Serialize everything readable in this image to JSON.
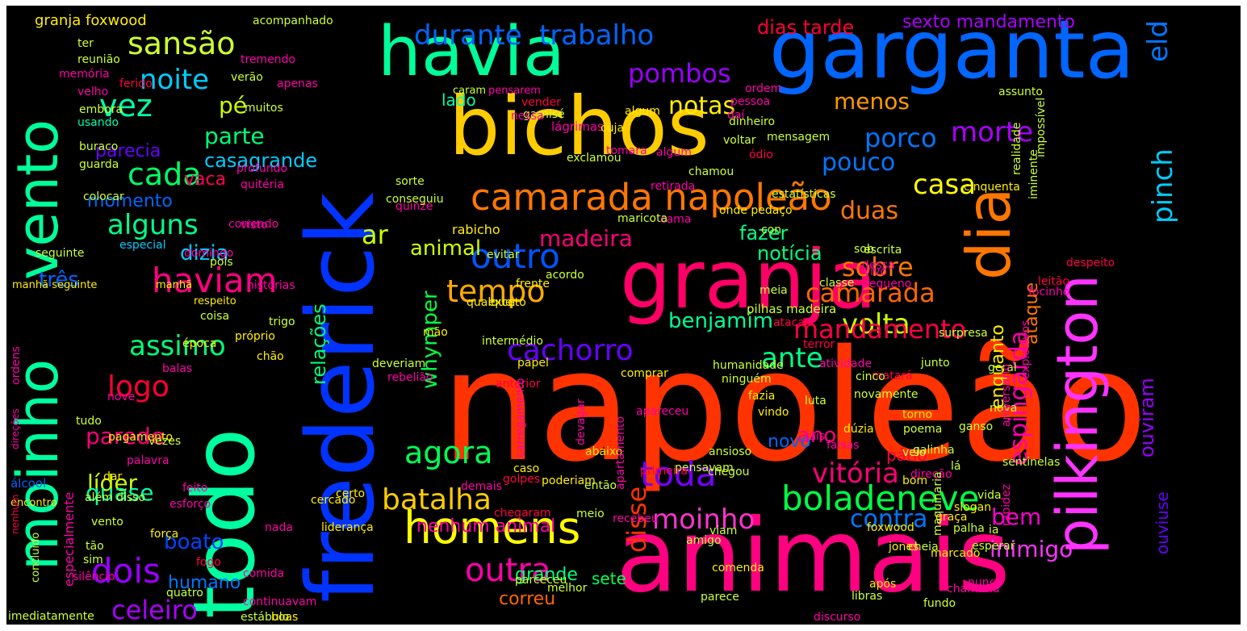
{
  "words": [
    {
      "text": "napoleão",
      "color": "#ff3300"
    },
    {
      "text": "frederick",
      "color": "#0033ff"
    },
    {
      "text": "animais",
      "color": "#ff0080"
    },
    {
      "text": "garganta",
      "color": "#0066ff"
    },
    {
      "text": "bichos",
      "color": "#ffcc00"
    },
    {
      "text": "granja",
      "color": "#ff0066"
    },
    {
      "text": "todo",
      "color": "#00ffa0"
    },
    {
      "text": "moinho",
      "color": "#00ffa0"
    },
    {
      "text": "vento",
      "color": "#00ff99"
    },
    {
      "text": "havia",
      "color": "#00ff99"
    },
    {
      "text": "pilkington",
      "color": "#ff33ff"
    },
    {
      "text": "dia",
      "color": "#ff7700"
    },
    {
      "text": "camarada napoleão",
      "color": "#ff7700"
    },
    {
      "text": "homens",
      "color": "#ffff00"
    },
    {
      "text": "boladeneve",
      "color": "#00ff44"
    },
    {
      "text": "outro",
      "color": "#0055ff"
    },
    {
      "text": "haviam",
      "color": "#ff0080"
    },
    {
      "text": "sansão",
      "color": "#ccff33"
    },
    {
      "text": "noite",
      "color": "#00ccff"
    },
    {
      "text": "vez",
      "color": "#00ffaa"
    },
    {
      "text": "cada",
      "color": "#00ff66"
    },
    {
      "text": "alguns",
      "color": "#00ff88"
    },
    {
      "text": "tempo",
      "color": "#ffaa00"
    },
    {
      "text": "agora",
      "color": "#00ff55"
    },
    {
      "text": "batalha",
      "color": "#ffcc00"
    },
    {
      "text": "toda",
      "color": "#7700ff"
    },
    {
      "text": "vitória",
      "color": "#ff0077"
    },
    {
      "text": "logo",
      "color": "#ff0033"
    },
    {
      "text": "assimo",
      "color": "#00ff77"
    },
    {
      "text": "dois",
      "color": "#9900ff"
    },
    {
      "text": "outra",
      "color": "#ff00aa"
    },
    {
      "text": "moinho",
      "color": "#ff33cc"
    },
    {
      "text": "celeiro",
      "color": "#aa00ff"
    },
    {
      "text": "cachorro",
      "color": "#6600ff"
    },
    {
      "text": "volta",
      "color": "#ccff00"
    },
    {
      "text": "porco",
      "color": "#0077ff"
    },
    {
      "text": "morte",
      "color": "#aa00ff"
    },
    {
      "text": "casa",
      "color": "#ffff00"
    },
    {
      "text": "sobre",
      "color": "#ff7700"
    },
    {
      "text": "camarada",
      "color": "#ff6600"
    },
    {
      "text": "mandamento",
      "color": "#ff0044"
    },
    {
      "text": "ante",
      "color": "#00ff88"
    },
    {
      "text": "durante",
      "color": "#0066ff"
    },
    {
      "text": "trabalho",
      "color": "#0066ff"
    },
    {
      "text": "pombos",
      "color": "#9900ff"
    },
    {
      "text": "notas",
      "color": "#ffee00"
    },
    {
      "text": "menos",
      "color": "#ff9900"
    },
    {
      "text": "pouco",
      "color": "#0077ff"
    },
    {
      "text": "duas",
      "color": "#ff7700"
    },
    {
      "text": "parte",
      "color": "#00ff77"
    },
    {
      "text": "casagrande",
      "color": "#00ccff"
    },
    {
      "text": "pé",
      "color": "#ccff00"
    },
    {
      "text": "parecia",
      "color": "#6600ff"
    },
    {
      "text": "vaca",
      "color": "#ff0055"
    },
    {
      "text": "momento",
      "color": "#0066ff"
    },
    {
      "text": "animal",
      "color": "#ccff00"
    },
    {
      "text": "madeira",
      "color": "#ff0077"
    },
    {
      "text": "ar",
      "color": "#ccff00"
    },
    {
      "text": "fazer",
      "color": "#00ff88"
    },
    {
      "text": "notícia",
      "color": "#00ff77"
    },
    {
      "text": "dizia",
      "color": "#00ccff"
    },
    {
      "text": "três",
      "color": "#0066ff"
    },
    {
      "text": "benjamim",
      "color": "#00ff99"
    },
    {
      "text": "whymper",
      "color": "#00ff44"
    },
    {
      "text": "relações",
      "color": "#00ff77"
    },
    {
      "text": "parede",
      "color": "#ff0077"
    },
    {
      "text": "líder",
      "color": "#ccff00"
    },
    {
      "text": "quase",
      "color": "#00ffaa"
    },
    {
      "text": "boato",
      "color": "#0044ff"
    },
    {
      "text": "humano",
      "color": "#0077ff"
    },
    {
      "text": "disse",
      "color": "#ff3300"
    },
    {
      "text": "contra",
      "color": "#0077ff"
    },
    {
      "text": "nenhum animal",
      "color": "#ff00aa"
    },
    {
      "text": "ano",
      "color": "#ff0077"
    },
    {
      "text": "bem",
      "color": "#ff00cc"
    },
    {
      "text": "inimigo",
      "color": "#ff33ff"
    },
    {
      "text": "grande",
      "color": "#00ff77"
    },
    {
      "text": "correu",
      "color": "#ff6600"
    },
    {
      "text": "sete",
      "color": "#00ff55"
    },
    {
      "text": "espingarda",
      "color": "#ff00aa"
    },
    {
      "text": "pinch",
      "color": "#00ccff"
    },
    {
      "text": "eld",
      "color": "#0077ff"
    },
    {
      "text": "ouviram",
      "color": "#9900ff"
    },
    {
      "text": "ouviuse",
      "color": "#6600ff"
    },
    {
      "text": "ataque",
      "color": "#ff7700"
    },
    {
      "text": "enquanto",
      "color": "#ffee00"
    },
    {
      "text": "pátio",
      "color": "#ff0044"
    },
    {
      "text": "novo",
      "color": "#0066ff"
    },
    {
      "text": "dias tarde",
      "color": "#ff0033"
    },
    {
      "text": "sexto mandamento",
      "color": "#aa00ff"
    },
    {
      "text": "granja foxwood",
      "color": "#ffee00"
    },
    {
      "text": "reunião",
      "color": "#ccff33"
    },
    {
      "text": "memória",
      "color": "#ff00aa"
    },
    {
      "text": "velho",
      "color": "#ff00aa"
    },
    {
      "text": "embora",
      "color": "#ccff33"
    },
    {
      "text": "usando",
      "color": "#00ffaa"
    },
    {
      "text": "buraco",
      "color": "#ccff33"
    },
    {
      "text": "guarda",
      "color": "#ccff33"
    },
    {
      "text": "colocar",
      "color": "#ccff33"
    },
    {
      "text": "especial",
      "color": "#00ccff"
    },
    {
      "text": "manhã seguinte",
      "color": "#ffee00"
    },
    {
      "text": "ordens",
      "color": "#ff00aa"
    },
    {
      "text": "direções",
      "color": "#ff00aa"
    },
    {
      "text": "álcool",
      "color": "#0066ff"
    },
    {
      "text": "encontro",
      "color": "#ffee00"
    },
    {
      "text": "nenhum",
      "color": "#ff0044"
    },
    {
      "text": "imediatamente",
      "color": "#ccff33"
    },
    {
      "text": "acompanhado",
      "color": "#ccff33"
    },
    {
      "text": "tremendo",
      "color": "#ff00aa"
    },
    {
      "text": "verão",
      "color": "#ccff33"
    },
    {
      "text": "ferido",
      "color": "#ff0044"
    },
    {
      "text": "apenas",
      "color": "#ff00aa"
    },
    {
      "text": "muitos",
      "color": "#ccff33"
    },
    {
      "text": "profundo",
      "color": "#ff00aa"
    },
    {
      "text": "quitéria",
      "color": "#ff00aa"
    },
    {
      "text": "visto",
      "color": "#ff00aa"
    },
    {
      "text": "domingo",
      "color": "#ff00aa"
    },
    {
      "text": "manhã",
      "color": "#ffee00"
    },
    {
      "text": "histórias",
      "color": "#ff00aa"
    },
    {
      "text": "respeito",
      "color": "#ffee00"
    },
    {
      "text": "coisa",
      "color": "#ccff33"
    },
    {
      "text": "trigo",
      "color": "#ccff33"
    },
    {
      "text": "época",
      "color": "#ffee00"
    },
    {
      "text": "próprio",
      "color": "#ffee00"
    },
    {
      "text": "chão",
      "color": "#ffee00"
    },
    {
      "text": "balas",
      "color": "#ff00aa"
    },
    {
      "text": "nove",
      "color": "#ff00aa"
    },
    {
      "text": "tudo",
      "color": "#ccff33"
    },
    {
      "text": "vezes",
      "color": "#ccff33"
    },
    {
      "text": "palavra",
      "color": "#ff00aa"
    },
    {
      "text": "dar",
      "color": "#ffee00"
    },
    {
      "text": "além disso",
      "color": "#ccff33"
    },
    {
      "text": "esforço",
      "color": "#ff00aa"
    },
    {
      "text": "fogo",
      "color": "#ff0044"
    },
    {
      "text": "comida",
      "color": "#ff00aa"
    },
    {
      "text": "quatro",
      "color": "#ccff33"
    },
    {
      "text": "continuavam",
      "color": "#ff00aa"
    },
    {
      "text": "estábulo",
      "color": "#ccff33"
    },
    {
      "text": "boas",
      "color": "#ffee00"
    },
    {
      "text": "lado",
      "color": "#00ffaa"
    },
    {
      "text": "vender",
      "color": "#ff0044"
    },
    {
      "text": "caram",
      "color": "#ccff33"
    },
    {
      "text": "pensarem",
      "color": "#ff00aa"
    },
    {
      "text": "garnisé",
      "color": "#ccff33"
    },
    {
      "text": "lágrimas",
      "color": "#ff00aa"
    },
    {
      "text": "algum",
      "color": "#ffee00"
    },
    {
      "text": "cuja",
      "color": "#ffee00"
    },
    {
      "text": "tomara",
      "color": "#ff00aa"
    },
    {
      "text": "chamou",
      "color": "#ccff33"
    },
    {
      "text": "pessoa",
      "color": "#ff00aa"
    },
    {
      "text": "ódio",
      "color": "#ff0044"
    },
    {
      "text": "exclamou",
      "color": "#ccff33"
    },
    {
      "text": "sorte",
      "color": "#ccff33"
    },
    {
      "text": "quinze",
      "color": "#ff00aa"
    },
    {
      "text": "dinheiro",
      "color": "#ccff33"
    },
    {
      "text": "mensagem",
      "color": "#ccff33"
    },
    {
      "text": "onde pedaço",
      "color": "#ffee00"
    },
    {
      "text": "estatísticas",
      "color": "#ccff33"
    },
    {
      "text": "voltar",
      "color": "#ccff33"
    },
    {
      "text": "rabicho",
      "color": "#ffee00"
    },
    {
      "text": "evitar",
      "color": "#ccff33"
    },
    {
      "text": "frente",
      "color": "#ffee00"
    },
    {
      "text": "exceto",
      "color": "#ffee00"
    },
    {
      "text": "qualquer",
      "color": "#ffee00"
    },
    {
      "text": "mão",
      "color": "#ffee00"
    },
    {
      "text": "intermédio",
      "color": "#ccff33"
    },
    {
      "text": "papel",
      "color": "#ffee00"
    },
    {
      "text": "anterior",
      "color": "#ff0044"
    },
    {
      "text": "acordo",
      "color": "#ccff33"
    },
    {
      "text": "meia",
      "color": "#ccff33"
    },
    {
      "text": "classe",
      "color": "#ccff33"
    },
    {
      "text": "atacar",
      "color": "#ff0044"
    },
    {
      "text": "pilhas madeira",
      "color": "#ccff33"
    },
    {
      "text": "atividade",
      "color": "#ff00aa"
    },
    {
      "text": "humanidade",
      "color": "#ccff33"
    },
    {
      "text": "comprar",
      "color": "#ffee00"
    },
    {
      "text": "ninguém",
      "color": "#ccff33"
    },
    {
      "text": "fazia",
      "color": "#ffee00"
    },
    {
      "text": "vindo",
      "color": "#ffee00"
    },
    {
      "text": "luta",
      "color": "#ccff33"
    },
    {
      "text": "tais",
      "color": "#ff00aa"
    },
    {
      "text": "terror",
      "color": "#ff0044"
    },
    {
      "text": "matará",
      "color": "#ff0044"
    },
    {
      "text": "junto",
      "color": "#ccff33"
    },
    {
      "text": "cinco",
      "color": "#ccff33"
    },
    {
      "text": "dúzia",
      "color": "#ffee00"
    },
    {
      "text": "torno",
      "color": "#ffee00"
    },
    {
      "text": "poema",
      "color": "#ccff33"
    },
    {
      "text": "falsas",
      "color": "#ff00aa"
    },
    {
      "text": "galinha",
      "color": "#ccff33"
    },
    {
      "text": "lá",
      "color": "#ccff33"
    },
    {
      "text": "direção",
      "color": "#ff00aa"
    },
    {
      "text": "veio",
      "color": "#ccff33"
    },
    {
      "text": "ansioso",
      "color": "#ccff33"
    },
    {
      "text": "pensavam",
      "color": "#ccff33"
    },
    {
      "text": "chegou",
      "color": "#ccff33"
    },
    {
      "text": "primeira",
      "color": "#ff0044"
    },
    {
      "text": "abaixo",
      "color": "#ffee00"
    },
    {
      "text": "então",
      "color": "#ccff33"
    },
    {
      "text": "recebeu",
      "color": "#ff00aa"
    },
    {
      "text": "comenda",
      "color": "#ffee00"
    },
    {
      "text": "parece",
      "color": "#ccff33"
    },
    {
      "text": "parceceu",
      "color": "#ccff33"
    },
    {
      "text": "melhor",
      "color": "#ccff33"
    },
    {
      "text": "amigo",
      "color": "#ccff33"
    },
    {
      "text": "viam",
      "color": "#ccff33"
    },
    {
      "text": "discurso",
      "color": "#ff00aa"
    },
    {
      "text": "libras",
      "color": "#ccff33"
    },
    {
      "text": "após",
      "color": "#ffee00"
    },
    {
      "text": "cheia",
      "color": "#ccff33"
    },
    {
      "text": "marcado",
      "color": "#ffee00"
    },
    {
      "text": "esperar",
      "color": "#ccff33"
    },
    {
      "text": "nunca",
      "color": "#ff00aa"
    },
    {
      "text": "chamaria",
      "color": "#ff00aa"
    },
    {
      "text": "fundo",
      "color": "#ccff33"
    },
    {
      "text": "bom",
      "color": "#ffee00"
    },
    {
      "text": "vida",
      "color": "#ccff33"
    },
    {
      "text": "slogan",
      "color": "#ffee00"
    },
    {
      "text": "graça",
      "color": "#ffee00"
    },
    {
      "text": "palha",
      "color": "#ccff33"
    },
    {
      "text": "ia",
      "color": "#ccff33"
    },
    {
      "text": "sentinelas",
      "color": "#ccff33"
    },
    {
      "text": "novamente",
      "color": "#ccff33"
    },
    {
      "text": "surpresa",
      "color": "#ccff33"
    },
    {
      "text": "geral",
      "color": "#ccff33"
    },
    {
      "text": "nova",
      "color": "#ccff33"
    },
    {
      "text": "ganso",
      "color": "#ccff33"
    },
    {
      "text": "leitão",
      "color": "#ff0044"
    },
    {
      "text": "focinho",
      "color": "#ff00aa"
    },
    {
      "text": "cinquenta",
      "color": "#ffee00"
    },
    {
      "text": "assunto",
      "color": "#ccff33"
    },
    {
      "text": "foxwood",
      "color": "#ffee00"
    },
    {
      "text": "jones",
      "color": "#ffee00"
    },
    {
      "text": "maquinaria",
      "color": "#ccff33"
    },
    {
      "text": "golpes",
      "color": "#ff0044"
    },
    {
      "text": "chegaram",
      "color": "#ff0044"
    },
    {
      "text": "rebelião",
      "color": "#ff00aa"
    },
    {
      "text": "deveriam",
      "color": "#ccff33"
    },
    {
      "text": "pagamento",
      "color": "#ffee00"
    },
    {
      "text": "vento",
      "color": "#ccff33"
    },
    {
      "text": "força",
      "color": "#ffee00"
    },
    {
      "text": "tão",
      "color": "#ccff33"
    },
    {
      "text": "sim",
      "color": "#ccff33"
    },
    {
      "text": "silêncio",
      "color": "#ff00aa"
    },
    {
      "text": "liderança",
      "color": "#ffee00"
    },
    {
      "text": "nada",
      "color": "#ff00aa"
    },
    {
      "text": "feito",
      "color": "#ff00aa"
    },
    {
      "text": "certo",
      "color": "#ffee00"
    },
    {
      "text": "cercado",
      "color": "#ffee00"
    },
    {
      "text": "demais",
      "color": "#ff00aa"
    },
    {
      "text": "caso",
      "color": "#ffee00"
    },
    {
      "text": "poderiam",
      "color": "#ffee00"
    },
    {
      "text": "meio",
      "color": "#ccff33"
    },
    {
      "text": "ordem",
      "color": "#ff00aa"
    },
    {
      "text": "conseguiu",
      "color": "#ccff33"
    },
    {
      "text": "correndo",
      "color": "#ff00aa"
    },
    {
      "text": "pois",
      "color": "#ccff33"
    },
    {
      "text": "especialmente",
      "color": "#ff00aa"
    },
    {
      "text": "seguinte",
      "color": "#ccff33"
    },
    {
      "text": "ter",
      "color": "#ccff33"
    },
    {
      "text": "concluído",
      "color": "#ccff33"
    },
    {
      "text": "sob",
      "color": "#ccff33"
    },
    {
      "text": "dessa",
      "color": "#ff00aa"
    },
    {
      "text": "pequeno",
      "color": "#ff00aa"
    },
    {
      "text": "realidade",
      "color": "#ccff33"
    },
    {
      "text": "iminente",
      "color": "#ccff33"
    },
    {
      "text": "escrita",
      "color": "#ccff33"
    },
    {
      "text": "vivo",
      "color": "#ff00aa"
    },
    {
      "text": "algum",
      "color": "#ff00aa"
    },
    {
      "text": "retirada",
      "color": "#ff00aa"
    },
    {
      "text": "cama",
      "color": "#ff00aa"
    },
    {
      "text": "maricota",
      "color": "#ccff33"
    },
    {
      "text": "despeito",
      "color": "#ff0044"
    },
    {
      "text": "explosivos",
      "color": "#ff00aa"
    },
    {
      "text": "apartamento",
      "color": "#ff00aa"
    },
    {
      "text": "aniversário",
      "color": "#ff00aa"
    },
    {
      "text": "rapidez",
      "color": "#ff00aa"
    },
    {
      "text": "impossível",
      "color": "#ccff33"
    },
    {
      "text": "devagar",
      "color": "#ff00aa"
    },
    {
      "text": "carregamento",
      "color": "#ff00aa"
    },
    {
      "text": "daí",
      "color": "#ff00aa"
    },
    {
      "text": "con",
      "color": "#ccff33"
    },
    {
      "text": "nessa",
      "color": "#ff00aa"
    },
    {
      "text": "apareceu",
      "color": "#ff00aa"
    }
  ]
}
